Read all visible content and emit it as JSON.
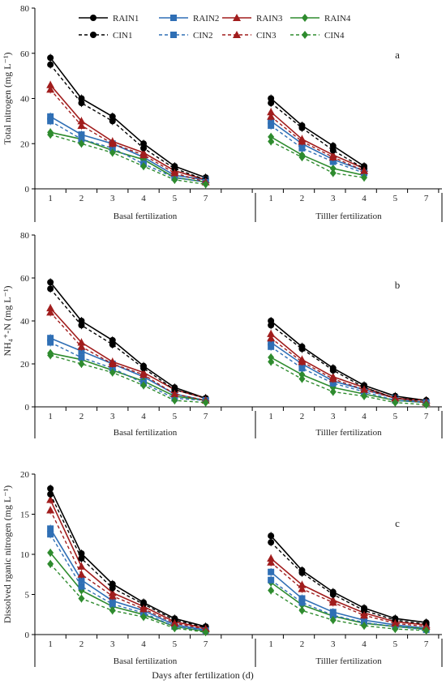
{
  "figure": {
    "xlabel": "Days after fertilization (d)",
    "panel_letters": [
      "a",
      "b",
      "c"
    ],
    "period_labels": [
      "Basal fertilization",
      "Tilller fertilization"
    ]
  },
  "legend": {
    "entries": [
      {
        "label": "RAIN1",
        "series": "RAIN1"
      },
      {
        "label": "RAIN2",
        "series": "RAIN2"
      },
      {
        "label": "RAIN3",
        "series": "RAIN3"
      },
      {
        "label": "RAIN4",
        "series": "RAIN4"
      },
      {
        "label": "CIN1",
        "series": "CIN1"
      },
      {
        "label": "CIN2",
        "series": "CIN2"
      },
      {
        "label": "CIN3",
        "series": "CIN3"
      },
      {
        "label": "CIN4",
        "series": "CIN4"
      }
    ]
  },
  "series_style": {
    "RAIN1": {
      "color": "#000000",
      "marker": "circle",
      "dash": "solid"
    },
    "RAIN2": {
      "color": "#2f6fb5",
      "marker": "square",
      "dash": "solid"
    },
    "RAIN3": {
      "color": "#a11d1d",
      "marker": "triangle",
      "dash": "solid"
    },
    "RAIN4": {
      "color": "#2e8b2e",
      "marker": "diamond",
      "dash": "solid"
    },
    "CIN1": {
      "color": "#000000",
      "marker": "circle",
      "dash": "dashed"
    },
    "CIN2": {
      "color": "#2f6fb5",
      "marker": "square",
      "dash": "dashed"
    },
    "CIN3": {
      "color": "#a11d1d",
      "marker": "triangle",
      "dash": "dashed"
    },
    "CIN4": {
      "color": "#2e8b2e",
      "marker": "diamond",
      "dash": "dashed"
    }
  },
  "chart_data": [
    {
      "type": "line",
      "panel": "a",
      "ylabel": "Total nitrogen (mg L⁻¹)",
      "ylim": [
        0,
        80
      ],
      "yticks": [
        0,
        20,
        40,
        60,
        80
      ],
      "categories": [
        "1",
        "2",
        "3",
        "4",
        "5",
        "7",
        "1",
        "2",
        "3",
        "4",
        "5",
        "7"
      ],
      "basal": {
        "x": [
          "1",
          "2",
          "3",
          "4",
          "5",
          "7"
        ],
        "series": [
          {
            "name": "RAIN1",
            "values": [
              58,
              40,
              32,
              20,
              10,
              5
            ]
          },
          {
            "name": "RAIN2",
            "values": [
              32,
              24,
              20,
              14,
              6,
              4
            ]
          },
          {
            "name": "RAIN3",
            "values": [
              46,
              30,
              21,
              16,
              8,
              4
            ]
          },
          {
            "name": "RAIN4",
            "values": [
              25,
              22,
              17,
              13,
              5,
              3
            ]
          },
          {
            "name": "CIN1",
            "values": [
              55,
              38,
              30,
              18,
              9,
              4
            ]
          },
          {
            "name": "CIN2",
            "values": [
              30,
              22,
              18,
              11,
              5,
              3
            ]
          },
          {
            "name": "CIN3",
            "values": [
              44,
              28,
              20,
              15,
              7,
              3
            ]
          },
          {
            "name": "CIN4",
            "values": [
              24,
              20,
              16,
              10,
              4,
              2
            ]
          }
        ]
      },
      "tiller": {
        "x": [
          "1",
          "2",
          "3",
          "4"
        ],
        "series": [
          {
            "name": "RAIN1",
            "values": [
              40,
              28,
              19,
              10
            ]
          },
          {
            "name": "RAIN2",
            "values": [
              30,
              20,
              13,
              8
            ]
          },
          {
            "name": "RAIN3",
            "values": [
              34,
              22,
              15,
              9
            ]
          },
          {
            "name": "RAIN4",
            "values": [
              23,
              15,
              9,
              6
            ]
          },
          {
            "name": "CIN1",
            "values": [
              38,
              27,
              17,
              9
            ]
          },
          {
            "name": "CIN2",
            "values": [
              28,
              18,
              12,
              7
            ]
          },
          {
            "name": "CIN3",
            "values": [
              32,
              21,
              14,
              8
            ]
          },
          {
            "name": "CIN4",
            "values": [
              21,
              14,
              7,
              5
            ]
          }
        ]
      }
    },
    {
      "type": "line",
      "panel": "b",
      "ylabel": "NH₄⁺-N (mg L⁻¹)",
      "ylim": [
        0,
        80
      ],
      "yticks": [
        0,
        20,
        40,
        60,
        80
      ],
      "categories": [
        "1",
        "2",
        "3",
        "4",
        "5",
        "7",
        "1",
        "2",
        "3",
        "4",
        "5",
        "7"
      ],
      "basal": {
        "x": [
          "1",
          "2",
          "3",
          "4",
          "5",
          "7"
        ],
        "series": [
          {
            "name": "RAIN1",
            "values": [
              58,
              40,
              31,
              19,
              9,
              4
            ]
          },
          {
            "name": "RAIN2",
            "values": [
              32,
              26,
              20,
              14,
              6,
              3
            ]
          },
          {
            "name": "RAIN3",
            "values": [
              46,
              30,
              21,
              16,
              8,
              4
            ]
          },
          {
            "name": "RAIN4",
            "values": [
              25,
              22,
              17,
              12,
              5,
              3
            ]
          },
          {
            "name": "CIN1",
            "values": [
              55,
              38,
              29,
              18,
              8,
              4
            ]
          },
          {
            "name": "CIN2",
            "values": [
              30,
              23,
              18,
              11,
              4,
              3
            ]
          },
          {
            "name": "CIN3",
            "values": [
              44,
              28,
              20,
              15,
              6,
              3
            ]
          },
          {
            "name": "CIN4",
            "values": [
              24,
              20,
              16,
              10,
              3,
              2
            ]
          }
        ]
      },
      "tiller": {
        "x": [
          "1",
          "2",
          "3",
          "4",
          "5",
          "7"
        ],
        "series": [
          {
            "name": "RAIN1",
            "values": [
              40,
              28,
              18,
              10,
              5,
              3
            ]
          },
          {
            "name": "RAIN2",
            "values": [
              30,
              20,
              12,
              8,
              4,
              2
            ]
          },
          {
            "name": "RAIN3",
            "values": [
              34,
              22,
              14,
              9,
              4,
              3
            ]
          },
          {
            "name": "RAIN4",
            "values": [
              23,
              15,
              9,
              6,
              3,
              2
            ]
          },
          {
            "name": "CIN1",
            "values": [
              38,
              27,
              17,
              9,
              4,
              3
            ]
          },
          {
            "name": "CIN2",
            "values": [
              28,
              18,
              11,
              7,
              3,
              2
            ]
          },
          {
            "name": "CIN3",
            "values": [
              32,
              21,
              13,
              8,
              4,
              2
            ]
          },
          {
            "name": "CIN4",
            "values": [
              21,
              13,
              7,
              5,
              2,
              1
            ]
          }
        ]
      }
    },
    {
      "type": "line",
      "panel": "c",
      "ylabel": "Dissolved rganic nitrogen (mg L⁻¹)",
      "ylim": [
        0,
        20
      ],
      "yticks": [
        0,
        5,
        10,
        15,
        20
      ],
      "categories": [
        "1",
        "2",
        "3",
        "4",
        "5",
        "7",
        "1",
        "2",
        "3",
        "4",
        "5",
        "7"
      ],
      "basal": {
        "x": [
          "1",
          "2",
          "3",
          "4",
          "5",
          "7"
        ],
        "series": [
          {
            "name": "RAIN1",
            "values": [
              18.2,
              10.1,
              6.3,
              4.0,
              2.0,
              1.0
            ]
          },
          {
            "name": "RAIN2",
            "values": [
              13.2,
              6.8,
              4.2,
              3.0,
              1.2,
              0.6
            ]
          },
          {
            "name": "RAIN3",
            "values": [
              16.8,
              8.5,
              5.2,
              3.5,
              1.6,
              0.8
            ]
          },
          {
            "name": "RAIN4",
            "values": [
              10.2,
              5.5,
              3.5,
              2.5,
              1.0,
              0.4
            ]
          },
          {
            "name": "CIN1",
            "values": [
              17.5,
              9.5,
              5.8,
              3.8,
              1.8,
              0.9
            ]
          },
          {
            "name": "CIN2",
            "values": [
              12.5,
              6.0,
              3.8,
              2.7,
              1.0,
              0.5
            ]
          },
          {
            "name": "CIN3",
            "values": [
              15.5,
              7.5,
              4.8,
              3.2,
              1.4,
              0.7
            ]
          },
          {
            "name": "CIN4",
            "values": [
              8.8,
              4.5,
              3.0,
              2.2,
              0.8,
              0.3
            ]
          }
        ]
      },
      "tiller": {
        "x": [
          "1",
          "2",
          "3",
          "4",
          "5",
          "7"
        ],
        "series": [
          {
            "name": "RAIN1",
            "values": [
              12.3,
              8.0,
              5.3,
              3.3,
              2.0,
              1.5
            ]
          },
          {
            "name": "RAIN2",
            "values": [
              7.8,
              4.5,
              2.8,
              1.8,
              1.2,
              0.8
            ]
          },
          {
            "name": "RAIN3",
            "values": [
              9.5,
              6.2,
              4.3,
              2.7,
              1.6,
              1.2
            ]
          },
          {
            "name": "RAIN4",
            "values": [
              6.5,
              3.7,
              2.3,
              1.4,
              1.0,
              0.7
            ]
          },
          {
            "name": "CIN1",
            "values": [
              11.5,
              7.7,
              5.0,
              3.0,
              1.8,
              1.3
            ]
          },
          {
            "name": "CIN2",
            "values": [
              6.8,
              4.0,
              2.4,
              1.5,
              1.0,
              0.6
            ]
          },
          {
            "name": "CIN3",
            "values": [
              9.0,
              5.7,
              4.0,
              2.4,
              1.4,
              1.0
            ]
          },
          {
            "name": "CIN4",
            "values": [
              5.5,
              3.0,
              1.8,
              1.1,
              0.7,
              0.5
            ]
          }
        ]
      }
    }
  ]
}
